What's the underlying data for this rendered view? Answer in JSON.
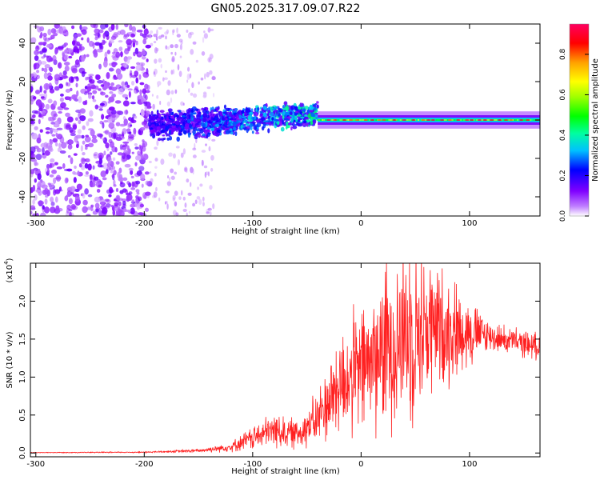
{
  "title": "GN05.2025.317.09.07.R22",
  "chart_data": [
    {
      "type": "heatmap",
      "title": "GN05.2025.317.09.07.R22",
      "xlabel": "Height of straight line (km)",
      "ylabel": "Frequency (Hz)",
      "xlim": [
        -305,
        165
      ],
      "ylim": [
        -50,
        50
      ],
      "x_ticks": [
        -300,
        -200,
        -100,
        0,
        100
      ],
      "y_ticks": [
        -40,
        -20,
        0,
        20,
        40
      ],
      "x_tick_labels": [
        "-300",
        "-200",
        "-100",
        "0",
        "100"
      ],
      "y_tick_labels": [
        "-40",
        "-20",
        "0",
        "20",
        "40"
      ],
      "colorbar": {
        "label": "Normalized spectral amplitude",
        "range": [
          0,
          0.95
        ],
        "ticks": [
          0.0,
          0.2,
          0.4,
          0.6,
          0.8
        ],
        "tick_labels": [
          "0.0",
          "0.2",
          "0.4",
          "0.6",
          "0.8"
        ],
        "colors": [
          "#ffffff",
          "#c080ff",
          "#8000ff",
          "#0000ff",
          "#00c0ff",
          "#00ffa0",
          "#00ff00",
          "#a0ff00",
          "#ffff00",
          "#ffa000",
          "#ff0000",
          "#ff0060"
        ]
      },
      "regions": [
        {
          "name": "noise",
          "x_range": [
            -305,
            -195
          ],
          "freq_range": [
            -50,
            50
          ],
          "amplitude": 0.12
        },
        {
          "name": "sparse-noise",
          "x_range": [
            -195,
            -135
          ],
          "freq_range": [
            -50,
            50
          ],
          "amplitude": 0.05
        },
        {
          "name": "onset",
          "x_range": [
            -195,
            -40
          ],
          "freq_center_start": -5,
          "freq_center_end": 5,
          "amplitude": 0.25
        },
        {
          "name": "carrier",
          "x_range": [
            -40,
            165
          ],
          "freq_center": 0,
          "amplitude": 0.9
        }
      ]
    },
    {
      "type": "line",
      "series": [
        {
          "name": "SNR",
          "color": "#ff2020"
        }
      ],
      "xlabel": "Height of straight line (km)",
      "ylabel": "SNR (10 * v/v)",
      "y_scale_label": "(x10",
      "y_scale_exp": "4",
      "xlim": [
        -305,
        165
      ],
      "ylim": [
        -0.05,
        2.5
      ],
      "x_ticks": [
        -300,
        -200,
        -100,
        0,
        100
      ],
      "y_ticks": [
        0.0,
        0.5,
        1.0,
        1.5,
        2.0
      ],
      "x_tick_labels": [
        "-300",
        "-200",
        "-100",
        "0",
        "100"
      ],
      "y_tick_labels": [
        "0.0",
        "0.5",
        "1.0",
        "1.5",
        "2.0"
      ],
      "profile": [
        [
          -305,
          0.005
        ],
        [
          -200,
          0.01
        ],
        [
          -150,
          0.03
        ],
        [
          -120,
          0.08
        ],
        [
          -100,
          0.2
        ],
        [
          -80,
          0.3
        ],
        [
          -60,
          0.25
        ],
        [
          -40,
          0.45
        ],
        [
          -30,
          0.7
        ],
        [
          -20,
          0.9
        ],
        [
          -10,
          1.0
        ],
        [
          0,
          1.1
        ],
        [
          20,
          1.35
        ],
        [
          40,
          1.6
        ],
        [
          60,
          1.65
        ],
        [
          100,
          1.6
        ],
        [
          130,
          1.5
        ],
        [
          165,
          1.4
        ]
      ]
    }
  ]
}
